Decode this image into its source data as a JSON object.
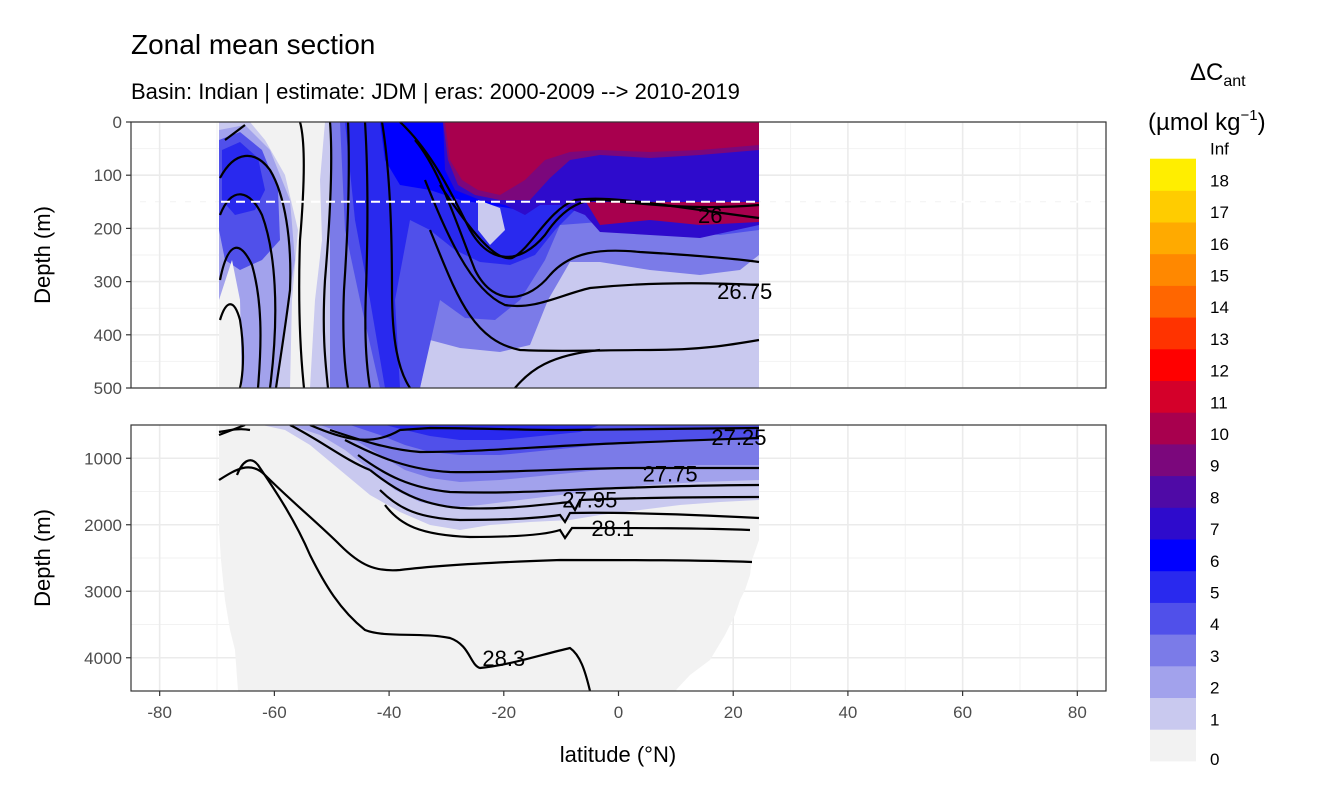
{
  "title": "Zonal mean section",
  "subtitle": "Basin: Indian | estimate: JDM  | eras: 2000-2009 --> 2010-2019",
  "legend": {
    "title_main": "ΔC",
    "title_sub": "ant",
    "units_prefix": "(µmol kg",
    "units_sup": "−1",
    "units_suffix": ")",
    "levels": [
      "0",
      "1",
      "2",
      "3",
      "4",
      "5",
      "6",
      "7",
      "8",
      "9",
      "10",
      "11",
      "12",
      "13",
      "14",
      "15",
      "16",
      "17",
      "18",
      "Inf"
    ],
    "colors": [
      "#f2f2f2",
      "#c9c9ef",
      "#a2a2ec",
      "#7b7be8",
      "#5050ea",
      "#2929ee",
      "#0000ff",
      "#2e0bcc",
      "#4f0aa6",
      "#7b077c",
      "#a8004e",
      "#d4002a",
      "#ff0000",
      "#ff3300",
      "#ff6600",
      "#ff8800",
      "#ffaa00",
      "#ffcc00",
      "#ffee00"
    ]
  },
  "chart_data": {
    "type": "heatmap",
    "xlabel": "latitude (°N)",
    "xticks": [
      "-80",
      "-60",
      "-40",
      "-20",
      "0",
      "20",
      "40",
      "60",
      "80"
    ],
    "xlim": [
      -85,
      85
    ],
    "panels": [
      {
        "name": "upper",
        "ylabel": "Depth (m)",
        "ylim": [
          0,
          500
        ],
        "yticks": [
          "0",
          "100",
          "200",
          "300",
          "400",
          "500"
        ],
        "reference_line_depth": 150,
        "contour_labels": [
          {
            "text": "26",
            "lat": 16,
            "depth": 175
          },
          {
            "text": "26.75",
            "lat": 22,
            "depth": 318
          }
        ]
      },
      {
        "name": "lower",
        "ylabel": "Depth (m)",
        "ylim": [
          500,
          4500
        ],
        "yticks": [
          "1000",
          "2000",
          "3000",
          "4000"
        ],
        "contour_labels": [
          {
            "text": "27.25",
            "lat": 21,
            "depth": 680
          },
          {
            "text": "27.75",
            "lat": 9,
            "depth": 1230
          },
          {
            "text": "27.95",
            "lat": -5,
            "depth": 1620
          },
          {
            "text": "28.1",
            "lat": -1,
            "depth": 2050
          },
          {
            "text": "28.3",
            "lat": -20,
            "depth": 4000
          }
        ]
      }
    ]
  }
}
